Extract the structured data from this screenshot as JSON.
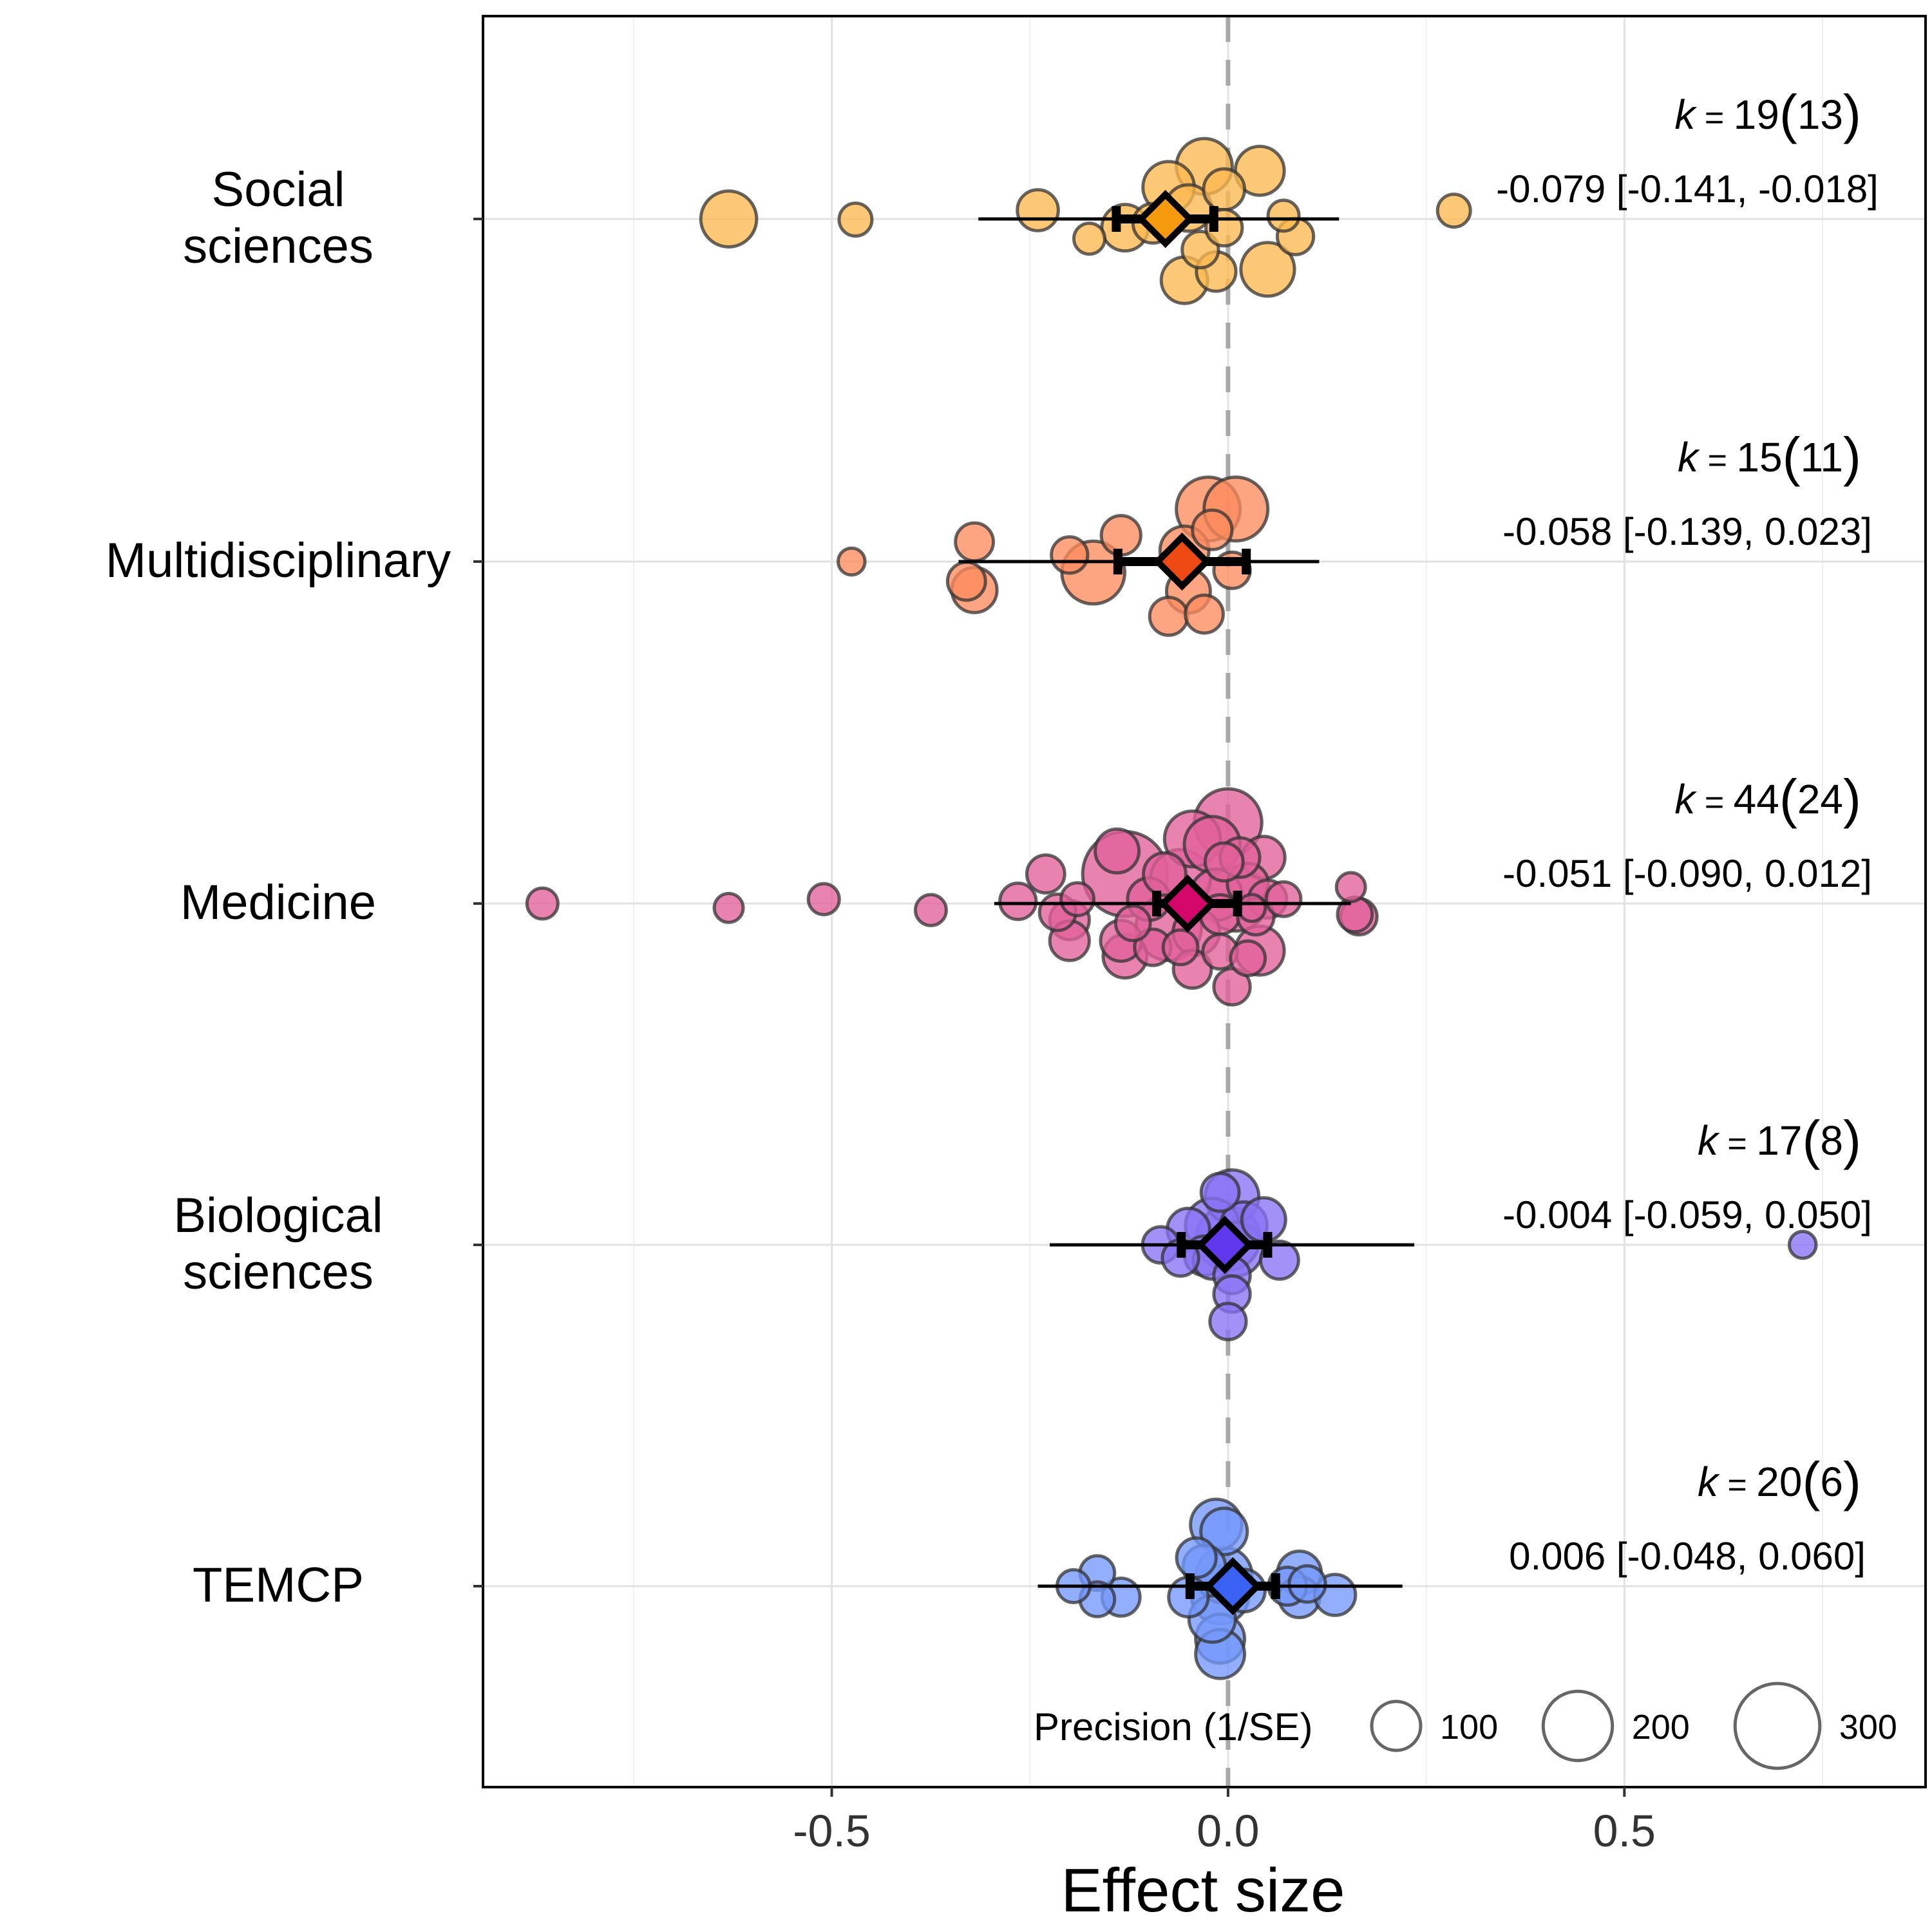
{
  "chart_data": {
    "type": "scatter",
    "subtype": "orchard-plot",
    "xlabel": "Effect size",
    "xlim": [
      -0.94,
      0.88
    ],
    "xticks": [
      -0.5,
      0.0,
      0.5
    ],
    "xtick_labels": [
      "-0.5",
      "0.0",
      "0.5"
    ],
    "reference_line": 0,
    "grid": true,
    "legend": {
      "title": "Precision (1/SE)",
      "placement": "bottom-right",
      "entries": [
        {
          "label": "100",
          "value": 100
        },
        {
          "label": "200",
          "value": 200
        },
        {
          "label": "300",
          "value": 300
        }
      ]
    },
    "groups": [
      {
        "name": "Social sciences",
        "label_lines": [
          "Social",
          "sciences"
        ],
        "color": "#FDB84E",
        "summary_color": "#F59A0C",
        "k_label": "k",
        "k_value": "19",
        "k_studies": "13",
        "estimate_text": "-0.079 [-0.141, -0.018]",
        "estimate": -0.079,
        "ci": [
          -0.141,
          -0.018
        ],
        "pi": [
          -0.315,
          0.14
        ],
        "points": [
          {
            "x": -0.63,
            "jitter": 0.0,
            "precision": 130
          },
          {
            "x": -0.47,
            "jitter": -0.03,
            "precision": 45
          },
          {
            "x": -0.24,
            "jitter": 0.4,
            "precision": 70
          },
          {
            "x": -0.175,
            "jitter": -0.9,
            "precision": 40
          },
          {
            "x": -0.13,
            "jitter": -0.4,
            "precision": 90
          },
          {
            "x": -0.075,
            "jitter": 1.45,
            "precision": 110
          },
          {
            "x": -0.05,
            "jitter": 0.5,
            "precision": 90
          },
          {
            "x": -0.03,
            "jitter": 2.4,
            "precision": 130
          },
          {
            "x": -0.035,
            "jitter": -1.4,
            "precision": 55
          },
          {
            "x": -0.055,
            "jitter": -2.8,
            "precision": 90
          },
          {
            "x": -0.015,
            "jitter": -2.4,
            "precision": 65
          },
          {
            "x": -0.005,
            "jitter": -0.4,
            "precision": 55
          },
          {
            "x": -0.005,
            "jitter": 1.35,
            "precision": 70
          },
          {
            "x": 0.04,
            "jitter": 2.2,
            "precision": 100
          },
          {
            "x": 0.05,
            "jitter": -2.3,
            "precision": 120
          },
          {
            "x": 0.07,
            "jitter": 0.15,
            "precision": 40
          },
          {
            "x": 0.085,
            "jitter": -0.8,
            "precision": 55
          },
          {
            "x": 0.285,
            "jitter": 0.38,
            "precision": 45
          },
          {
            "x": -0.095,
            "jitter": -0.2,
            "precision": 65
          }
        ]
      },
      {
        "name": "Multidisciplinary",
        "label_lines": [
          "Multidisciplinary"
        ],
        "color": "#FC8A5E",
        "summary_color": "#F04A14",
        "k_label": "k",
        "k_value": "15",
        "k_studies": "11",
        "estimate_text": "-0.058 [-0.139, 0.023]",
        "estimate": -0.058,
        "ci": [
          -0.139,
          0.023
        ],
        "pi": [
          -0.34,
          0.115
        ],
        "points": [
          {
            "x": -0.475,
            "jitter": 0.0,
            "precision": 30
          },
          {
            "x": -0.32,
            "jitter": 0.9,
            "precision": 60
          },
          {
            "x": -0.33,
            "jitter": -0.9,
            "precision": 60
          },
          {
            "x": -0.32,
            "jitter": -1.3,
            "precision": 85
          },
          {
            "x": -0.2,
            "jitter": 0.3,
            "precision": 55
          },
          {
            "x": -0.17,
            "jitter": -0.5,
            "precision": 165
          },
          {
            "x": -0.135,
            "jitter": 1.2,
            "precision": 65
          },
          {
            "x": -0.055,
            "jitter": 0.5,
            "precision": 100
          },
          {
            "x": -0.05,
            "jitter": -1.35,
            "precision": 80
          },
          {
            "x": -0.075,
            "jitter": -2.5,
            "precision": 60
          },
          {
            "x": -0.025,
            "jitter": 2.4,
            "precision": 170
          },
          {
            "x": 0.01,
            "jitter": 2.4,
            "precision": 170
          },
          {
            "x": -0.02,
            "jitter": 1.45,
            "precision": 65
          },
          {
            "x": 0.005,
            "jitter": -0.4,
            "precision": 55
          },
          {
            "x": -0.03,
            "jitter": -2.4,
            "precision": 60
          }
        ]
      },
      {
        "name": "Medicine",
        "label_lines": [
          "Medicine"
        ],
        "color": "#E2609A",
        "summary_color": "#D6076B",
        "k_label": "k",
        "k_value": "44",
        "k_studies": "24",
        "estimate_text": "-0.051 [-0.090, 0.012]",
        "estimate": -0.051,
        "ci": [
          -0.09,
          0.012
        ],
        "pi": [
          -0.295,
          0.155
        ],
        "points": [
          {
            "x": -0.865,
            "jitter": 0.0,
            "precision": 40
          },
          {
            "x": -0.63,
            "jitter": -0.2,
            "precision": 35
          },
          {
            "x": -0.51,
            "jitter": 0.2,
            "precision": 40
          },
          {
            "x": -0.375,
            "jitter": -0.3,
            "precision": 40
          },
          {
            "x": -0.265,
            "jitter": 0.1,
            "precision": 55
          },
          {
            "x": -0.23,
            "jitter": 1.35,
            "precision": 60
          },
          {
            "x": -0.215,
            "jitter": -0.4,
            "precision": 55
          },
          {
            "x": -0.2,
            "jitter": -0.75,
            "precision": 65
          },
          {
            "x": -0.2,
            "jitter": -1.7,
            "precision": 65
          },
          {
            "x": -0.19,
            "jitter": 0.2,
            "precision": 45
          },
          {
            "x": -0.14,
            "jitter": 2.4,
            "precision": 80
          },
          {
            "x": -0.135,
            "jitter": -1.7,
            "precision": 70
          },
          {
            "x": -0.13,
            "jitter": -2.4,
            "precision": 80
          },
          {
            "x": -0.13,
            "jitter": 1.35,
            "precision": 300
          },
          {
            "x": -0.1,
            "jitter": 0.2,
            "precision": 75
          },
          {
            "x": -0.075,
            "jitter": -1.1,
            "precision": 180
          },
          {
            "x": -0.08,
            "jitter": 1.35,
            "precision": 75
          },
          {
            "x": -0.06,
            "jitter": 1.1,
            "precision": 150
          },
          {
            "x": -0.06,
            "jitter": -2.0,
            "precision": 50
          },
          {
            "x": -0.045,
            "jitter": 2.95,
            "precision": 130
          },
          {
            "x": -0.045,
            "jitter": -3.0,
            "precision": 60
          },
          {
            "x": -0.04,
            "jitter": -1.3,
            "precision": 90
          },
          {
            "x": -0.02,
            "jitter": 2.7,
            "precision": 130
          },
          {
            "x": -0.015,
            "jitter": 0.4,
            "precision": 110
          },
          {
            "x": -0.01,
            "jitter": -0.5,
            "precision": 65
          },
          {
            "x": -0.005,
            "jitter": 1.9,
            "precision": 60
          },
          {
            "x": 0.0,
            "jitter": 3.7,
            "precision": 190
          },
          {
            "x": -0.01,
            "jitter": -2.2,
            "precision": 50
          },
          {
            "x": 0.01,
            "jitter": 0.2,
            "precision": 170
          },
          {
            "x": 0.015,
            "jitter": 2.1,
            "precision": 65
          },
          {
            "x": 0.025,
            "jitter": 0.9,
            "precision": 70
          },
          {
            "x": 0.035,
            "jitter": -0.6,
            "precision": 55
          },
          {
            "x": 0.04,
            "jitter": -2.15,
            "precision": 100
          },
          {
            "x": 0.025,
            "jitter": -2.5,
            "precision": 50
          },
          {
            "x": 0.03,
            "jitter": -0.2,
            "precision": 30
          },
          {
            "x": 0.045,
            "jitter": 2.1,
            "precision": 75
          },
          {
            "x": 0.05,
            "jitter": 0.2,
            "precision": 60
          },
          {
            "x": 0.07,
            "jitter": 0.2,
            "precision": 50
          },
          {
            "x": 0.155,
            "jitter": 0.75,
            "precision": 35
          },
          {
            "x": 0.16,
            "jitter": -0.5,
            "precision": 50
          },
          {
            "x": 0.165,
            "jitter": -0.6,
            "precision": 55
          },
          {
            "x": 0.005,
            "jitter": -3.8,
            "precision": 55
          },
          {
            "x": -0.095,
            "jitter": -2.0,
            "precision": 55
          },
          {
            "x": -0.12,
            "jitter": -0.9,
            "precision": 50
          }
        ]
      },
      {
        "name": "Biological sciences",
        "label_lines": [
          "Biological",
          "sciences"
        ],
        "color": "#8A72F5",
        "summary_color": "#6038EE",
        "k_label": "k",
        "k_value": "17",
        "k_studies": "8",
        "estimate_text": "-0.004 [-0.059, 0.050]",
        "estimate": -0.004,
        "ci": [
          -0.059,
          0.05
        ],
        "pi": [
          -0.225,
          0.235
        ],
        "points": [
          {
            "x": -0.085,
            "jitter": 0.0,
            "precision": 55
          },
          {
            "x": -0.06,
            "jitter": -0.6,
            "precision": 55
          },
          {
            "x": -0.05,
            "jitter": 0.7,
            "precision": 75
          },
          {
            "x": -0.03,
            "jitter": -0.5,
            "precision": 65
          },
          {
            "x": -0.01,
            "jitter": 2.4,
            "precision": 60
          },
          {
            "x": 0.005,
            "jitter": 2.2,
            "precision": 120
          },
          {
            "x": -0.02,
            "jitter": 0.9,
            "precision": 120
          },
          {
            "x": 0.0,
            "jitter": 0.3,
            "precision": 170
          },
          {
            "x": 0.01,
            "jitter": -0.2,
            "precision": 120
          },
          {
            "x": 0.02,
            "jitter": 0.9,
            "precision": 90
          },
          {
            "x": 0.045,
            "jitter": 1.15,
            "precision": 80
          },
          {
            "x": 0.065,
            "jitter": -0.7,
            "precision": 60
          },
          {
            "x": 0.005,
            "jitter": -1.4,
            "precision": 55
          },
          {
            "x": 0.005,
            "jitter": -2.25,
            "precision": 55
          },
          {
            "x": 0.0,
            "jitter": -3.5,
            "precision": 55
          },
          {
            "x": 0.725,
            "jitter": 0.0,
            "precision": 30
          },
          {
            "x": -0.02,
            "jitter": -0.7,
            "precision": 60
          }
        ]
      },
      {
        "name": "TEMCP",
        "label_lines": [
          "TEMCP"
        ],
        "color": "#7397FB",
        "summary_color": "#3A63F5",
        "k_label": "k",
        "k_value": "20",
        "k_studies": "6",
        "estimate_text": "0.006 [-0.048, 0.060]",
        "estimate": 0.006,
        "ci": [
          -0.048,
          0.06
        ],
        "pi": [
          -0.24,
          0.22
        ],
        "points": [
          {
            "x": -0.195,
            "jitter": 0.0,
            "precision": 45
          },
          {
            "x": -0.165,
            "jitter": 0.6,
            "precision": 50
          },
          {
            "x": -0.165,
            "jitter": -0.6,
            "precision": 50
          },
          {
            "x": -0.135,
            "jitter": -0.5,
            "precision": 60
          },
          {
            "x": -0.04,
            "jitter": 1.3,
            "precision": 65
          },
          {
            "x": -0.03,
            "jitter": 0.9,
            "precision": 75
          },
          {
            "x": -0.015,
            "jitter": 2.8,
            "precision": 110
          },
          {
            "x": -0.005,
            "jitter": 2.5,
            "precision": 90
          },
          {
            "x": -0.005,
            "jitter": 0.5,
            "precision": 130
          },
          {
            "x": -0.01,
            "jitter": -0.4,
            "precision": 140
          },
          {
            "x": -0.02,
            "jitter": -1.5,
            "precision": 90
          },
          {
            "x": -0.01,
            "jitter": -2.4,
            "precision": 100
          },
          {
            "x": -0.01,
            "jitter": -3.1,
            "precision": 100
          },
          {
            "x": 0.075,
            "jitter": 0.0,
            "precision": 60
          },
          {
            "x": 0.09,
            "jitter": 0.6,
            "precision": 80
          },
          {
            "x": 0.09,
            "jitter": -0.5,
            "precision": 70
          },
          {
            "x": 0.135,
            "jitter": -0.4,
            "precision": 70
          },
          {
            "x": 0.1,
            "jitter": 0.1,
            "precision": 55
          },
          {
            "x": -0.05,
            "jitter": -0.5,
            "precision": 65
          },
          {
            "x": 0.02,
            "jitter": -0.2,
            "precision": 75
          }
        ]
      }
    ]
  }
}
